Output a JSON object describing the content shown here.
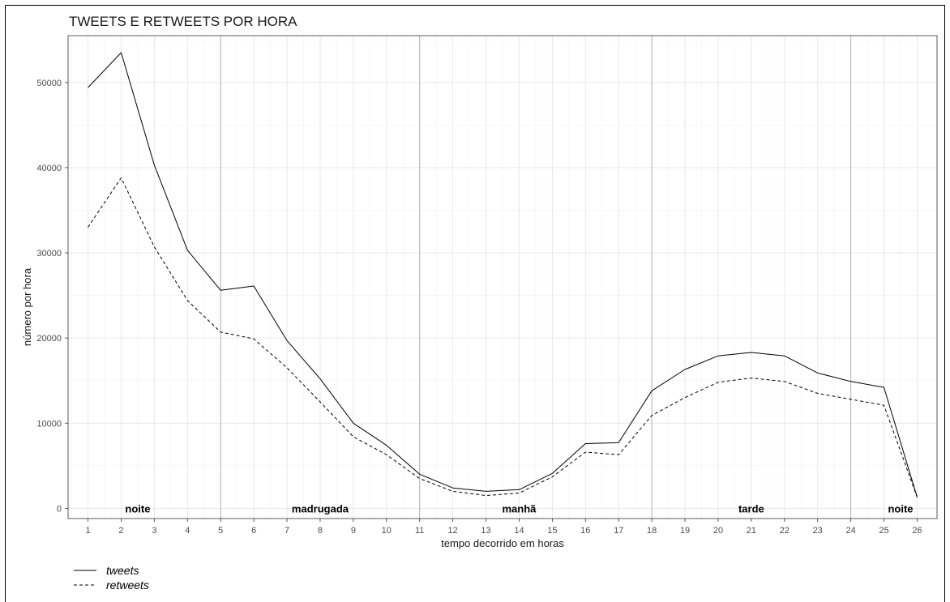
{
  "chart_data": {
    "type": "line",
    "title": "TWEETS E RETWEETS POR HORA",
    "xlabel": "tempo decorrido em horas",
    "ylabel": "número por hora",
    "x": [
      1,
      2,
      3,
      4,
      5,
      6,
      7,
      8,
      9,
      10,
      11,
      12,
      13,
      14,
      15,
      16,
      17,
      18,
      19,
      20,
      21,
      22,
      23,
      24,
      25,
      26
    ],
    "xlim": [
      0.4,
      26.6
    ],
    "ylim": [
      -1200,
      55500
    ],
    "yticks": [
      0,
      10000,
      20000,
      30000,
      40000,
      50000
    ],
    "grid": true,
    "legend_position": "bottom-left",
    "series": [
      {
        "name": "tweets",
        "line_style": "solid",
        "values": [
          49400,
          53500,
          40300,
          30300,
          25600,
          26100,
          19700,
          15200,
          10000,
          7400,
          4000,
          2400,
          2000,
          2200,
          4100,
          7600,
          7700,
          13800,
          16300,
          17900,
          18300,
          17900,
          15900,
          14900,
          14200,
          1300
        ]
      },
      {
        "name": "retweets",
        "line_style": "dashed",
        "values": [
          33000,
          38800,
          30700,
          24400,
          20700,
          19900,
          16500,
          12500,
          8400,
          6300,
          3500,
          2000,
          1500,
          1800,
          3700,
          6600,
          6300,
          10900,
          13000,
          14800,
          15300,
          14900,
          13500,
          12800,
          12100,
          1300
        ]
      }
    ],
    "period_dividers": [
      5,
      11,
      18,
      24
    ],
    "period_labels": [
      {
        "label": "noite",
        "x": 2.5
      },
      {
        "label": "madrugada",
        "x": 8
      },
      {
        "label": "manhã",
        "x": 14
      },
      {
        "label": "tarde",
        "x": 21
      },
      {
        "label": "noite",
        "x": 25.5
      }
    ]
  }
}
